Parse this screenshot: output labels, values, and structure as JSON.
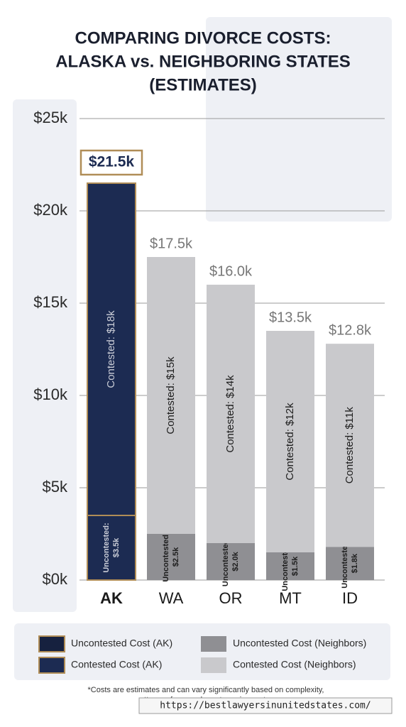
{
  "chart_data": {
    "type": "stacked-bar",
    "title_lines": [
      "COMPARING DIVORCE COSTS:",
      "ALASKA vs. NEIGHBORING STATES",
      "(ESTIMATES)"
    ],
    "categories": [
      "AK",
      "WA",
      "OR",
      "MT",
      "ID"
    ],
    "ylim": [
      0,
      25
    ],
    "yticks": [
      {
        "value": 0,
        "label": "$0k"
      },
      {
        "value": 5,
        "label": "$5k"
      },
      {
        "value": 10,
        "label": "$10k"
      },
      {
        "value": 15,
        "label": "$15k"
      },
      {
        "value": 20,
        "label": "$20k"
      },
      {
        "value": 25,
        "label": "$25k"
      }
    ],
    "grid": true,
    "series": [
      {
        "name": "Uncontested:",
        "colors": [
          "#1c2b52",
          "#8f8f93",
          "#8f8f93",
          "#8f8f93",
          "#8f8f93"
        ],
        "strokes": [
          "#b08d57",
          "none",
          "none",
          "none",
          "none"
        ],
        "label_colors": [
          "#c9ccd6",
          "#1e1e1e",
          "#1e1e1e",
          "#1e1e1e",
          "#1e1e1e"
        ],
        "values": [
          3.5,
          2.5,
          2.0,
          1.5,
          1.8
        ],
        "value_labels": [
          "$3.5k",
          "$2.5k",
          "$2.0k",
          "$1.5k",
          "$1.8k"
        ]
      },
      {
        "name": "Contested:",
        "colors": [
          "#1c2b52",
          "#c9c9cc",
          "#c9c9cc",
          "#c9c9cc",
          "#c9c9cc"
        ],
        "strokes": [
          "#b08d57",
          "none",
          "none",
          "none",
          "none"
        ],
        "label_colors": [
          "#c9ccd6",
          "#1e1e1e",
          "#1e1e1e",
          "#1e1e1e",
          "#1e1e1e"
        ],
        "values": [
          18,
          15,
          14,
          12,
          11
        ],
        "value_labels": [
          "$18k",
          "$15k",
          "$14k",
          "$12k",
          "$11k"
        ]
      }
    ],
    "totals": {
      "values": [
        21.5,
        17.5,
        16.0,
        13.5,
        12.8
      ],
      "value_labels": [
        "$21.5k",
        "$17.5k",
        "$16.0k",
        "$13.5k",
        "$12.8k"
      ]
    },
    "legend": [
      {
        "label": "Uncontested Cost (AK)",
        "color": "#16213f",
        "border": "#b08d57"
      },
      {
        "label": "Uncontested Cost (Neighbors)",
        "color": "#8f8f93",
        "border": "none"
      },
      {
        "label": "Contested Cost (AK)",
        "color": "#1c2b52",
        "border": "#b08d57"
      },
      {
        "label": "Contested Cost (Neighbors)",
        "color": "#c9c9cc",
        "border": "none"
      }
    ],
    "footnote_lines": [
      "*Costs are estimates and can vary significantly based on complexity,",
      "attorney fees, and court requirements."
    ],
    "watermark": "https://bestlawyersinunitedstates.com/"
  }
}
